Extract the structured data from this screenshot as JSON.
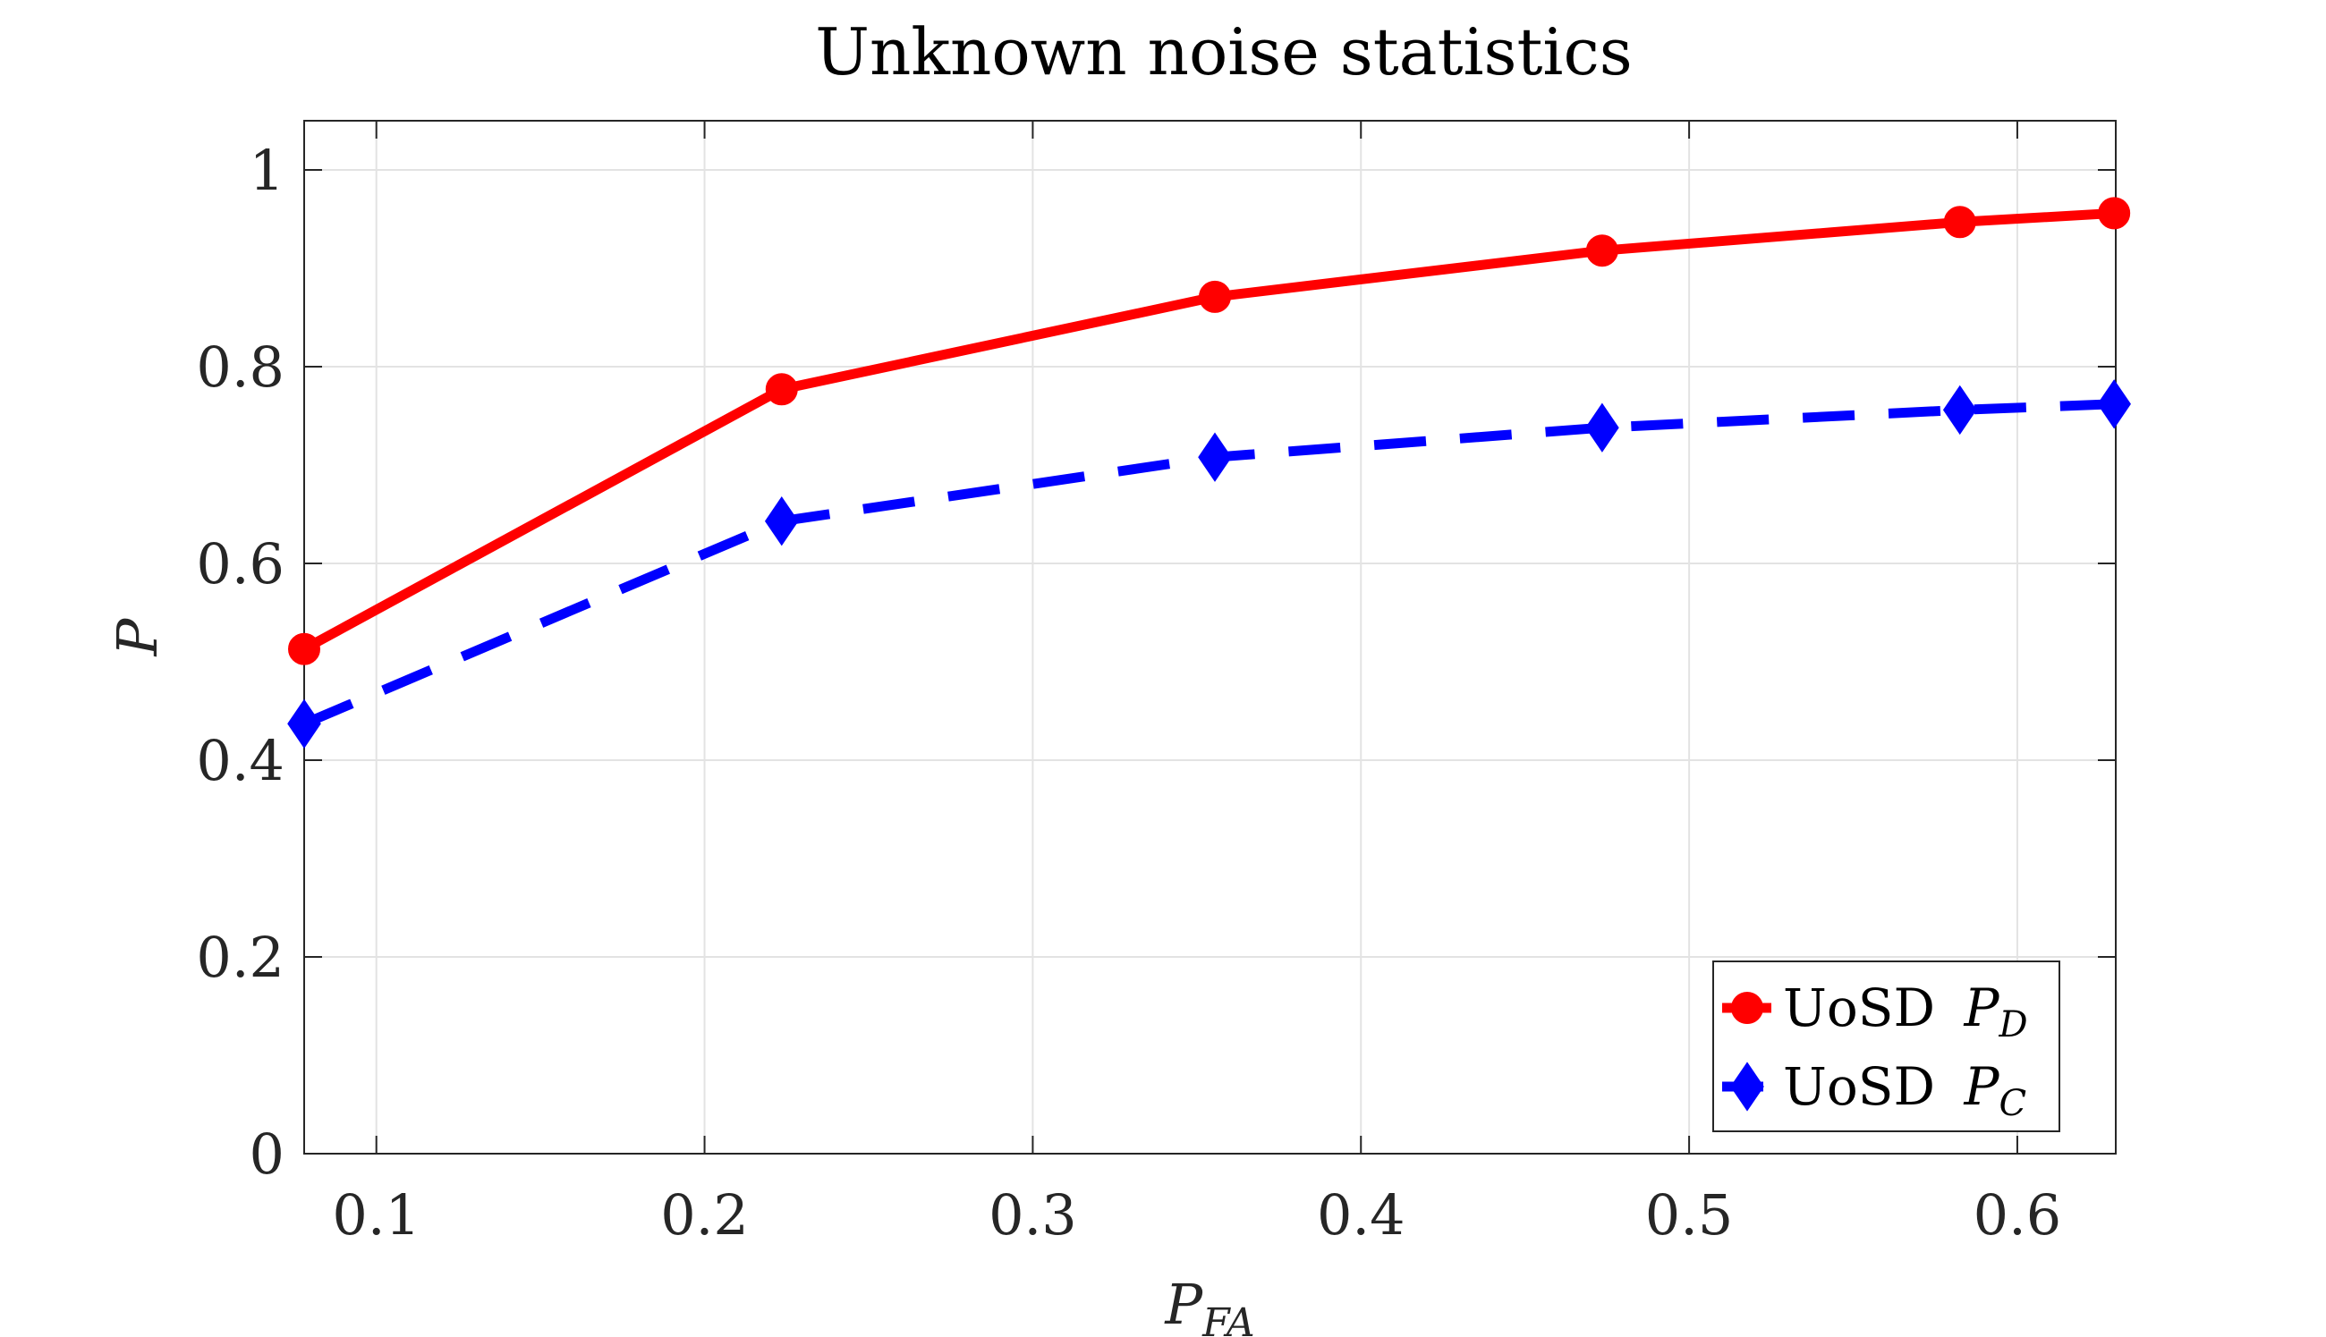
{
  "chart_data": {
    "type": "line",
    "title": "Unknown noise statistics",
    "xlabel": {
      "main": "P",
      "sub": "FA"
    },
    "ylabel": "P",
    "xlim": [
      0.078,
      0.63
    ],
    "ylim": [
      0,
      1.05
    ],
    "xticks": [
      0.1,
      0.2,
      0.3,
      0.4,
      0.5,
      0.6
    ],
    "xtick_labels": [
      "0.1",
      "0.2",
      "0.3",
      "0.4",
      "0.5",
      "0.6"
    ],
    "yticks": [
      0,
      0.2,
      0.4,
      0.6,
      0.8,
      1
    ],
    "ytick_labels": [
      "0",
      "0.2",
      "0.4",
      "0.6",
      "0.8",
      "1"
    ],
    "grid": true,
    "legend_position": "bottom-right",
    "series": [
      {
        "name": "UoSD",
        "name_sub": "D",
        "name_main": "P",
        "color": "#ff0000",
        "line_style": "solid",
        "marker": "circle",
        "x": [
          0.078,
          0.2235,
          0.3555,
          0.4735,
          0.5825,
          0.6295
        ],
        "y": [
          0.513,
          0.777,
          0.871,
          0.918,
          0.947,
          0.956
        ]
      },
      {
        "name": "UoSD",
        "name_sub": "C",
        "name_main": "P",
        "color": "#0000ff",
        "line_style": "dashed",
        "marker": "diamond",
        "x": [
          0.078,
          0.2235,
          0.3555,
          0.4735,
          0.5825,
          0.6295
        ],
        "y": [
          0.437,
          0.643,
          0.708,
          0.738,
          0.756,
          0.762
        ]
      }
    ]
  }
}
